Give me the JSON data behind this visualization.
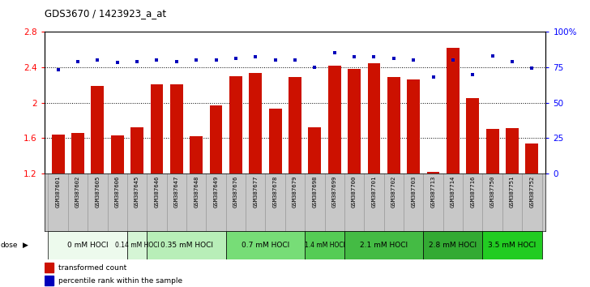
{
  "title": "GDS3670 / 1423923_a_at",
  "samples": [
    "GSM387601",
    "GSM387602",
    "GSM387605",
    "GSM387606",
    "GSM387645",
    "GSM387646",
    "GSM387647",
    "GSM387648",
    "GSM387649",
    "GSM387676",
    "GSM387677",
    "GSM387678",
    "GSM387679",
    "GSM387698",
    "GSM387699",
    "GSM387700",
    "GSM387701",
    "GSM387702",
    "GSM387703",
    "GSM387713",
    "GSM387714",
    "GSM387716",
    "GSM387750",
    "GSM387751",
    "GSM387752"
  ],
  "bar_values": [
    1.64,
    1.66,
    2.19,
    1.63,
    1.72,
    2.21,
    2.21,
    1.62,
    1.97,
    2.3,
    2.33,
    1.93,
    2.29,
    1.72,
    2.42,
    2.38,
    2.44,
    2.29,
    2.26,
    1.22,
    2.62,
    2.05,
    1.7,
    1.71,
    1.54
  ],
  "percentile_values": [
    73,
    79,
    80,
    78,
    79,
    80,
    79,
    80,
    80,
    81,
    82,
    80,
    80,
    75,
    85,
    82,
    82,
    81,
    80,
    68,
    80,
    70,
    83,
    79,
    74
  ],
  "dose_groups": [
    {
      "label": "0 mM HOCl",
      "start": 0,
      "end": 4,
      "color": "#edfaed"
    },
    {
      "label": "0.14 mM HOCl",
      "start": 4,
      "end": 5,
      "color": "#d5f5d5"
    },
    {
      "label": "0.35 mM HOCl",
      "start": 5,
      "end": 9,
      "color": "#b8eeb8"
    },
    {
      "label": "0.7 mM HOCl",
      "start": 9,
      "end": 13,
      "color": "#77dd77"
    },
    {
      "label": "1.4 mM HOCl",
      "start": 13,
      "end": 15,
      "color": "#55cc55"
    },
    {
      "label": "2.1 mM HOCl",
      "start": 15,
      "end": 19,
      "color": "#44bb44"
    },
    {
      "label": "2.8 mM HOCl",
      "start": 19,
      "end": 22,
      "color": "#33aa33"
    },
    {
      "label": "3.5 mM HOCl",
      "start": 22,
      "end": 25,
      "color": "#22cc22"
    }
  ],
  "bar_color": "#cc1100",
  "dot_color": "#0000bb",
  "ylim_left": [
    1.2,
    2.8
  ],
  "ylim_right": [
    0,
    100
  ],
  "yticks_left": [
    1.2,
    1.6,
    2.0,
    2.4,
    2.8
  ],
  "ytick_labels_left": [
    "1.2",
    "1.6",
    "2",
    "2.4",
    "2.8"
  ],
  "yticks_right": [
    0,
    25,
    50,
    75,
    100
  ],
  "ytick_labels_right": [
    "0",
    "25",
    "50",
    "75",
    "100%"
  ],
  "grid_values": [
    1.6,
    2.0,
    2.4
  ],
  "xtick_bg_color": "#c8c8c8",
  "fig_width": 7.28,
  "fig_height": 3.54
}
